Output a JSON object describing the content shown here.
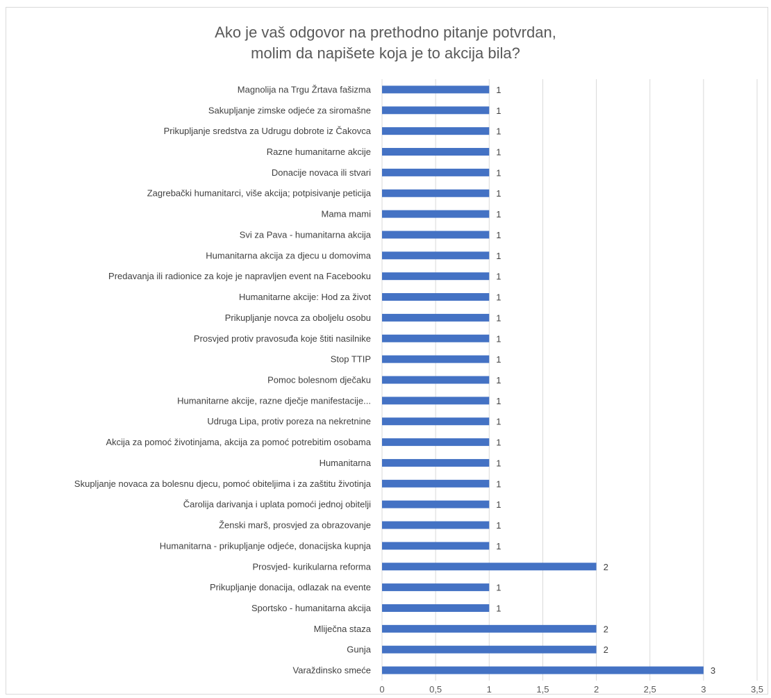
{
  "chart_data": {
    "type": "bar",
    "orientation": "horizontal",
    "title_lines": [
      "Ako je vaš odgovor na prethodno pitanje potvrdan,",
      "molim da napišete koja je to akcija bila?"
    ],
    "categories": [
      "Magnolija na Trgu Žrtava fašizma",
      "Sakupljanje zimske odjeće za siromašne",
      "Prikupljanje sredstva za Udrugu dobrote iz Čakovca",
      "Razne humanitarne akcije",
      "Donacije novaca ili stvari",
      "Zagrebački humanitarci, više akcija; potpisivanje peticija",
      "Mama mami",
      "Svi za Pava - humanitarna akcija",
      "Humanitarna akcija za djecu u domovima",
      "Predavanja ili radionice za koje je napravljen event na Facebooku",
      "Humanitarne akcije: Hod za život",
      "Prikupljanje novca za oboljelu osobu",
      "Prosvjed protiv pravosuđa koje štiti nasilnike",
      "Stop TTIP",
      "Pomoc bolesnom dječaku",
      "Humanitarne akcije, razne dječje manifestacije...",
      "Udruga Lipa, protiv poreza na nekretnine",
      "Akcija za pomoć životinjama, akcija za pomoć potrebitim osobama",
      "Humanitarna",
      "Skupljanje novaca za bolesnu djecu, pomoć obiteljima i za zaštitu životinja",
      "Čarolija darivanja i uplata pomoći jednoj obitelji",
      "Ženski marš, prosvjed za obrazovanje",
      "Humanitarna - prikupljanje odjeće, donacijska kupnja",
      "Prosvjed- kurikularna reforma",
      "Prikupljanje donacija, odlazak na evente",
      "Sportsko - humanitarna akcija",
      "Mliječna staza",
      "Gunja",
      "Varaždinsko smeće"
    ],
    "values": [
      1,
      1,
      1,
      1,
      1,
      1,
      1,
      1,
      1,
      1,
      1,
      1,
      1,
      1,
      1,
      1,
      1,
      1,
      1,
      1,
      1,
      1,
      1,
      2,
      1,
      1,
      2,
      2,
      3
    ],
    "xlim": [
      0,
      3.5
    ],
    "xticks": [
      "0",
      "0,5",
      "1",
      "1,5",
      "2",
      "2,5",
      "3",
      "3,5"
    ],
    "xtick_values": [
      0,
      0.5,
      1,
      1.5,
      2,
      2.5,
      3,
      3.5
    ],
    "grid": "vertical",
    "legend": "none",
    "bar_color": "#4472c4",
    "grid_color": "#d9d9d9"
  }
}
